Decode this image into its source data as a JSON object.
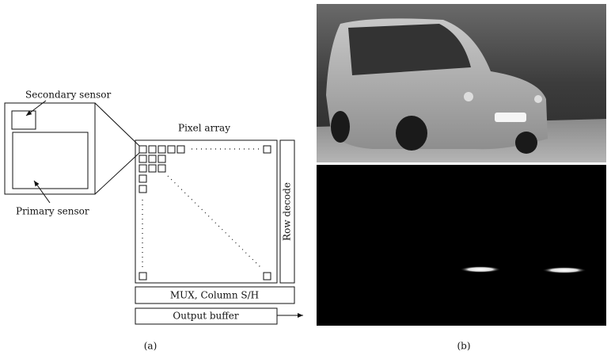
{
  "diagram": {
    "secondary_sensor": "Secondary sensor",
    "primary_sensor": "Primary sensor",
    "pixel_array": "Pixel array",
    "row_decode": "Row decode",
    "mux": "MUX, Column S/H",
    "output_buffer": "Output buffer",
    "caption_a": "(a)",
    "caption_b": "(b)"
  }
}
